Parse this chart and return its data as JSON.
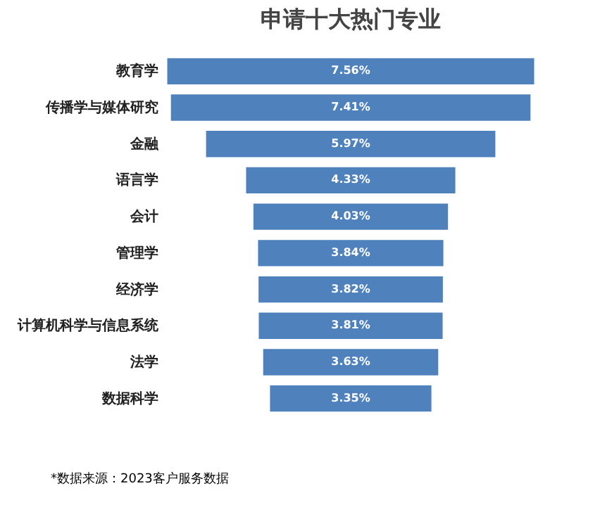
{
  "chart_data": {
    "type": "other",
    "title": "申请十大热门专业",
    "categories": [
      "教育学",
      "传播学与媒体研究",
      "金融",
      "语言学",
      "会计",
      "管理学",
      "经济学",
      "计算机科学与信息系统",
      "法学",
      "数据科学"
    ],
    "values": [
      7.56,
      7.41,
      5.97,
      4.33,
      4.03,
      3.84,
      3.82,
      3.81,
      3.63,
      3.35
    ],
    "value_labels": [
      "7.56%",
      "7.41%",
      "5.97%",
      "4.33%",
      "4.03%",
      "3.84%",
      "3.82%",
      "3.81%",
      "3.63%",
      "3.35%"
    ],
    "color": "#4f81bd",
    "annotations": [
      "*数据来源：2023客户服务数据"
    ]
  }
}
